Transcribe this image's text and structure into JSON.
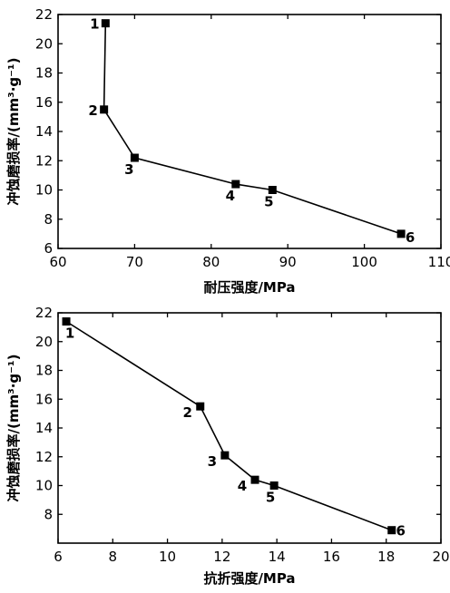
{
  "chart_data": [
    {
      "type": "line",
      "xlabel": "耐压强度/MPa",
      "ylabel": "冲蚀磨损率/(mm³·g⁻¹)",
      "xlim": [
        60,
        110
      ],
      "ylim": [
        6,
        22
      ],
      "xticks": [
        60,
        70,
        80,
        90,
        100,
        110
      ],
      "yticks": [
        6,
        8,
        10,
        12,
        14,
        16,
        18,
        20,
        22
      ],
      "points": [
        {
          "label": "1",
          "x": 66.2,
          "y": 21.4
        },
        {
          "label": "2",
          "x": 66.0,
          "y": 15.5
        },
        {
          "label": "3",
          "x": 70.0,
          "y": 12.2
        },
        {
          "label": "4",
          "x": 83.2,
          "y": 10.4
        },
        {
          "label": "5",
          "x": 88.0,
          "y": 10.0
        },
        {
          "label": "6",
          "x": 104.8,
          "y": 7.0
        }
      ],
      "grid": false
    },
    {
      "type": "line",
      "xlabel": "抗折强度/MPa",
      "ylabel": "冲蚀磨损率/(mm³·g⁻¹)",
      "xlim": [
        6,
        20
      ],
      "ylim": [
        6,
        22
      ],
      "xticks": [
        6,
        8,
        10,
        12,
        14,
        16,
        18,
        20
      ],
      "yticks": [
        8,
        10,
        12,
        14,
        16,
        18,
        20,
        22
      ],
      "points": [
        {
          "label": "1",
          "x": 6.3,
          "y": 21.4
        },
        {
          "label": "2",
          "x": 11.2,
          "y": 15.5
        },
        {
          "label": "3",
          "x": 12.1,
          "y": 12.1
        },
        {
          "label": "4",
          "x": 13.2,
          "y": 10.4
        },
        {
          "label": "5",
          "x": 13.9,
          "y": 10.0
        },
        {
          "label": "6",
          "x": 18.2,
          "y": 6.9
        }
      ],
      "grid": false
    }
  ]
}
